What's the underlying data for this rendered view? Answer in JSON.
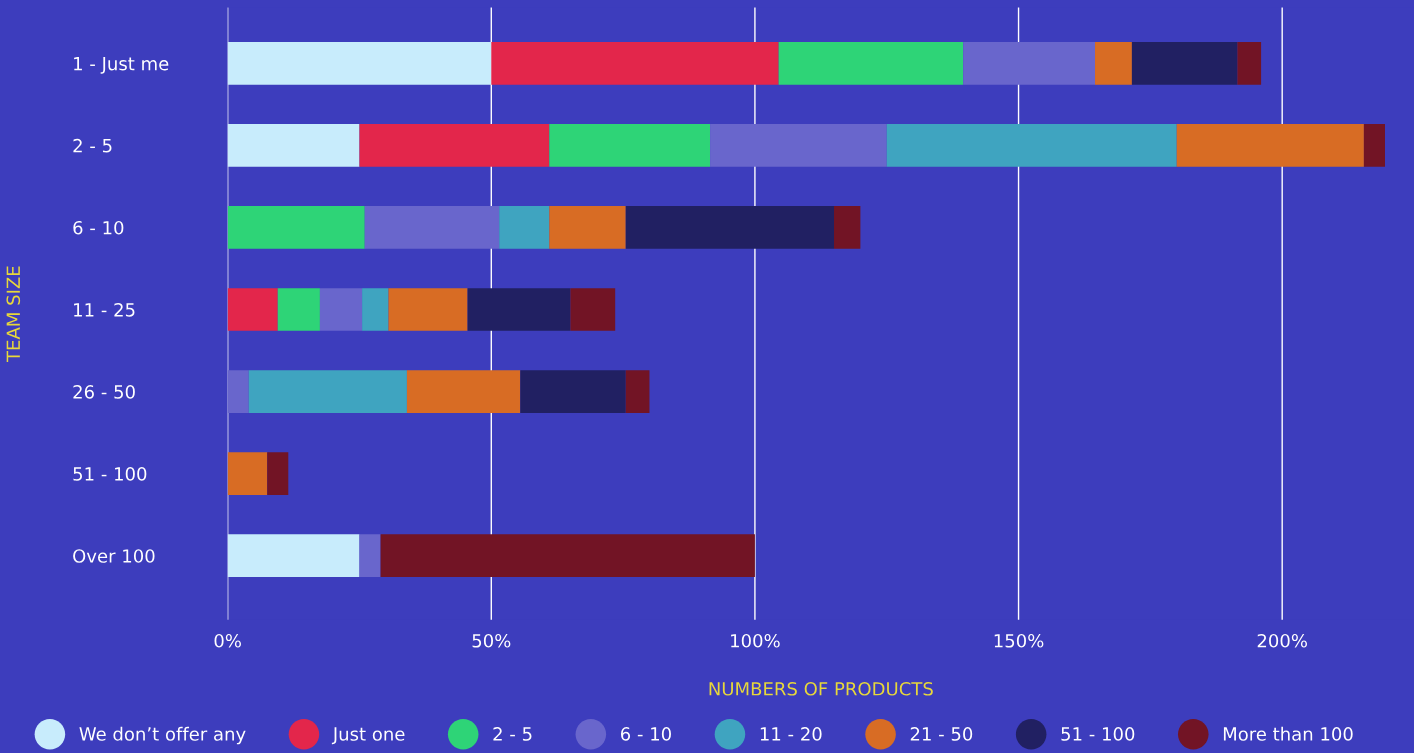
{
  "chart_data": {
    "type": "bar",
    "orientation": "horizontal",
    "stacked": true,
    "xlabel": "NUMBERS OF PRODUCTS",
    "ylabel": "TEAM SIZE",
    "categories": [
      "1 - Just me",
      "2 - 5",
      "6 - 10",
      "11 - 25",
      "26 - 50",
      "51 - 100",
      "Over 100"
    ],
    "series": [
      {
        "name": "We don’t offer any",
        "color": "#c8ecfc",
        "values": [
          50,
          25,
          null,
          null,
          null,
          null,
          25
        ]
      },
      {
        "name": "Just one",
        "color": "#e3264b",
        "values": [
          54.5,
          36,
          null,
          9.5,
          null,
          null,
          null
        ]
      },
      {
        "name": "2 - 5",
        "color": "#2ed477",
        "values": [
          35,
          30.5,
          26,
          8,
          null,
          null,
          null
        ]
      },
      {
        "name": "6 - 10",
        "color": "#6966cc",
        "values": [
          25,
          33.5,
          25.5,
          8,
          4,
          null,
          4
        ]
      },
      {
        "name": "11 - 20",
        "color": "#3fa4c0",
        "values": [
          null,
          55,
          9.5,
          5,
          30,
          null,
          null
        ]
      },
      {
        "name": "21 - 50",
        "color": "#d86c24",
        "values": [
          7,
          35.5,
          14.5,
          15,
          21.5,
          7.5,
          null
        ]
      },
      {
        "name": "51 - 100",
        "color": "#212062",
        "values": [
          20,
          null,
          39.5,
          19.5,
          20,
          null,
          null
        ]
      },
      {
        "name": "More than 100",
        "color": "#721425",
        "values": [
          4.5,
          4,
          5,
          8.5,
          4.5,
          4,
          71
        ]
      }
    ],
    "xlim": [
      0,
      225
    ],
    "xticks": [
      {
        "value": 0,
        "label": "0%"
      },
      {
        "value": 50,
        "label": "50%"
      },
      {
        "value": 100,
        "label": "100%"
      },
      {
        "value": 150,
        "label": "150%"
      },
      {
        "value": 200,
        "label": "200%"
      }
    ],
    "grid": "x",
    "legend": "bottom",
    "marker": "circle"
  }
}
